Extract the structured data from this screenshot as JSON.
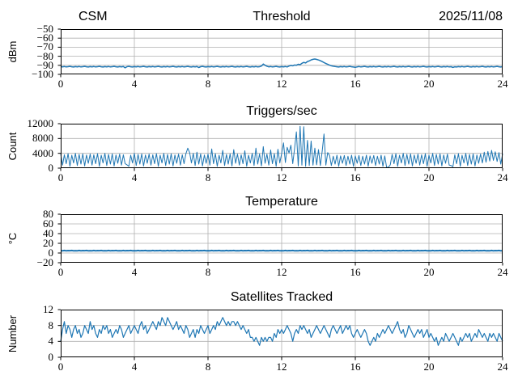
{
  "figure": {
    "header_left": "CSM",
    "header_right": "2025/11/08",
    "line_color": "#1f77b4",
    "grid_color": "#b0b0b0",
    "spine_color": "#000000",
    "background": "#ffffff"
  },
  "chart_data": [
    {
      "type": "line",
      "title": "Threshold",
      "ylabel": "dBm",
      "xlim": [
        0,
        24
      ],
      "ylim": [
        -100,
        -50
      ],
      "xtick_values": [
        0,
        4,
        8,
        12,
        16,
        20,
        24
      ],
      "xtick_labels": [
        "0",
        "4",
        "8",
        "12",
        "16",
        "20",
        "24"
      ],
      "ytick_values": [
        -50,
        -60,
        -70,
        -80,
        -90,
        -100
      ],
      "ytick_labels": [
        "−50",
        "−60",
        "−70",
        "−80",
        "−90",
        "−100"
      ],
      "grid": true,
      "x_start": 0,
      "x_step": 0.1,
      "values": [
        -91.4,
        -91.7,
        -91.3,
        -91.8,
        -91.5,
        -91.2,
        -91.6,
        -91.9,
        -91.4,
        -91.7,
        -91.3,
        -91.8,
        -91.5,
        -91.2,
        -91.6,
        -91.9,
        -91.4,
        -91.7,
        -91.3,
        -91.8,
        -91.5,
        -91.2,
        -91.6,
        -91.9,
        -91.4,
        -91.7,
        -91.3,
        -91.8,
        -91.5,
        -91.2,
        -91.6,
        -91.9,
        -91.4,
        -91.7,
        -91.3,
        -92.8,
        -91.5,
        -91.2,
        -91.6,
        -91.9,
        -91.4,
        -91.7,
        -91.3,
        -91.8,
        -91.5,
        -91.2,
        -91.6,
        -91.9,
        -91.4,
        -91.7,
        -91.3,
        -91.8,
        -91.5,
        -91.2,
        -91.6,
        -91.9,
        -91.4,
        -91.7,
        -91.3,
        -91.8,
        -91.5,
        -91.2,
        -91.6,
        -91.9,
        -91.4,
        -91.7,
        -91.3,
        -91.8,
        -91.5,
        -91.2,
        -91.6,
        -91.9,
        -91.4,
        -91.7,
        -91.3,
        -92.4,
        -91.5,
        -91.2,
        -91.6,
        -91.9,
        -91.4,
        -91.7,
        -91.3,
        -91.8,
        -91.5,
        -91.2,
        -91.6,
        -91.9,
        -91.4,
        -91.7,
        -91.3,
        -91.8,
        -91.5,
        -91.2,
        -91.6,
        -91.9,
        -91.4,
        -91.7,
        -91.3,
        -91.8,
        -91.5,
        -91.2,
        -91.6,
        -91.9,
        -91.4,
        -91.7,
        -91.3,
        -91.8,
        -91.5,
        -90.8,
        -88.6,
        -89.9,
        -91.0,
        -91.7,
        -91.3,
        -91.8,
        -91.5,
        -91.2,
        -91.6,
        -91.9,
        -91.4,
        -91.7,
        -91.3,
        -91.8,
        -90.8,
        -90.2,
        -90.5,
        -89.6,
        -89.9,
        -88.8,
        -89.3,
        -87.8,
        -86.8,
        -87.4,
        -85.8,
        -85.2,
        -84.0,
        -83.4,
        -83.0,
        -83.5,
        -84.1,
        -84.9,
        -85.9,
        -87.0,
        -88.0,
        -88.9,
        -89.8,
        -90.5,
        -91.0,
        -91.3,
        -91.6,
        -91.9,
        -91.4,
        -91.7,
        -91.3,
        -91.8,
        -91.5,
        -91.2,
        -91.6,
        -91.9,
        -92.2,
        -91.7,
        -91.3,
        -91.8,
        -91.5,
        -91.2,
        -91.6,
        -91.9,
        -91.4,
        -91.7,
        -91.3,
        -91.8,
        -91.5,
        -91.2,
        -91.6,
        -91.9,
        -91.4,
        -91.7,
        -91.3,
        -91.8,
        -91.5,
        -91.2,
        -91.6,
        -91.9,
        -91.4,
        -91.7,
        -91.3,
        -91.8,
        -91.5,
        -91.2,
        -91.6,
        -91.9,
        -91.4,
        -91.7,
        -91.3,
        -91.8,
        -91.5,
        -91.2,
        -91.6,
        -91.9,
        -91.4,
        -91.7,
        -91.3,
        -91.8,
        -91.5,
        -91.2,
        -91.6,
        -91.9,
        -91.4,
        -91.7,
        -91.3,
        -91.8,
        -91.5,
        -92.3,
        -91.6,
        -91.9,
        -91.4,
        -91.7,
        -91.3,
        -91.8,
        -91.5,
        -91.2,
        -91.6,
        -91.9,
        -91.4,
        -91.7,
        -91.3,
        -91.8,
        -91.5,
        -91.2,
        -91.6,
        -91.9,
        -91.4,
        -91.7,
        -91.3,
        -91.8,
        -91.5,
        -91.2,
        -91.6,
        -91.9,
        -91.4
      ]
    },
    {
      "type": "line",
      "title": "Triggers/sec",
      "ylabel": "Count",
      "xlim": [
        0,
        24
      ],
      "ylim": [
        0,
        12000
      ],
      "xtick_values": [
        0,
        4,
        8,
        12,
        16,
        20,
        24
      ],
      "xtick_labels": [
        "0",
        "4",
        "8",
        "12",
        "16",
        "20",
        "24"
      ],
      "ytick_values": [
        12000,
        8000,
        4000,
        0
      ],
      "ytick_labels": [
        "12000",
        "8000",
        "4000",
        "0"
      ],
      "grid": true,
      "x_start": 0,
      "x_step": 0.1,
      "values": [
        3800,
        800,
        3600,
        1200,
        3900,
        500,
        3500,
        1400,
        4000,
        700,
        3700,
        1100,
        3850,
        600,
        3550,
        1300,
        3800,
        800,
        3600,
        1200,
        3900,
        500,
        3500,
        1400,
        4000,
        700,
        3700,
        1100,
        3850,
        600,
        3550,
        1300,
        3800,
        800,
        3600,
        1200,
        900,
        500,
        3500,
        1400,
        4000,
        700,
        3700,
        1100,
        3850,
        600,
        3550,
        1300,
        3800,
        800,
        3600,
        1200,
        3900,
        500,
        3500,
        1400,
        4000,
        700,
        3700,
        1100,
        3850,
        600,
        3550,
        1300,
        3800,
        800,
        3600,
        1200,
        3900,
        5400,
        4200,
        1400,
        4000,
        700,
        4300,
        1100,
        3850,
        600,
        3550,
        1300,
        3800,
        800,
        5200,
        1200,
        3900,
        500,
        3500,
        1400,
        4800,
        700,
        3700,
        1100,
        3850,
        600,
        5000,
        1300,
        3800,
        800,
        3600,
        1200,
        4700,
        500,
        3500,
        1400,
        4000,
        700,
        5400,
        1100,
        3850,
        600,
        5800,
        1300,
        3800,
        800,
        4900,
        1200,
        3900,
        500,
        5100,
        1400,
        4000,
        6800,
        1500,
        5600,
        4100,
        6200,
        1200,
        5200,
        9800,
        600,
        11300,
        800,
        11200,
        500,
        7500,
        700,
        7300,
        800,
        5400,
        900,
        5000,
        700,
        4600,
        9200,
        800,
        4200,
        3400,
        700,
        3200,
        1100,
        3500,
        500,
        3300,
        1300,
        3400,
        700,
        3200,
        1100,
        3500,
        500,
        3300,
        1300,
        3400,
        700,
        3200,
        1100,
        3500,
        500,
        3300,
        1300,
        3400,
        700,
        3200,
        1100,
        3500,
        500,
        3300,
        150,
        260,
        900,
        3700,
        1200,
        3900,
        500,
        3500,
        1400,
        4000,
        700,
        3700,
        1100,
        3850,
        600,
        3550,
        1300,
        3800,
        800,
        3600,
        1200,
        3900,
        500,
        3500,
        1400,
        4000,
        700,
        3700,
        1100,
        3850,
        600,
        3550,
        1300,
        3800,
        800,
        700,
        400,
        3600,
        1200,
        3900,
        500,
        3500,
        1400,
        4000,
        700,
        3700,
        1100,
        3850,
        600,
        3550,
        1300,
        3800,
        1400,
        4300,
        1600,
        4500,
        1900,
        4800,
        2100,
        4400,
        1800,
        4200,
        1100,
        3900
      ]
    },
    {
      "type": "line",
      "title": "Temperature",
      "ylabel": "°C",
      "xlim": [
        0,
        24
      ],
      "ylim": [
        -20,
        80
      ],
      "xtick_values": [
        0,
        4,
        8,
        12,
        16,
        20,
        24
      ],
      "xtick_labels": [
        "0",
        "4",
        "8",
        "12",
        "16",
        "20",
        "24"
      ],
      "ytick_values": [
        80,
        60,
        40,
        20,
        0,
        -20
      ],
      "ytick_labels": [
        "80",
        "60",
        "40",
        "20",
        "0",
        "−20"
      ],
      "grid": true,
      "x_start": 0,
      "x_step": 0.1,
      "values": [
        4.9,
        4.6,
        5.1,
        4.7,
        5.0,
        4.8,
        5.2,
        4.6,
        4.9,
        4.6,
        5.1,
        4.7,
        5.0,
        4.8,
        5.2,
        4.6,
        4.9,
        4.6,
        5.1,
        4.7,
        5.0,
        4.8,
        5.2,
        4.6,
        4.9,
        4.6,
        5.1,
        4.7,
        5.0,
        4.8,
        5.2,
        4.6,
        4.9,
        4.6,
        5.1,
        4.7,
        5.0,
        4.8,
        5.2,
        4.6,
        4.9,
        4.6,
        5.1,
        4.7,
        5.0,
        4.8,
        5.2,
        4.6,
        4.9,
        4.6,
        5.1,
        4.7,
        5.0,
        4.8,
        5.2,
        4.6,
        4.9,
        4.6,
        5.1,
        4.7,
        5.0,
        4.8,
        5.2,
        4.6,
        4.9,
        4.6,
        5.1,
        4.7,
        5.0,
        4.8,
        5.2,
        4.6,
        4.9,
        4.6,
        5.1,
        4.7,
        5.0,
        4.8,
        5.2,
        4.6,
        4.9,
        4.6,
        5.1,
        4.7,
        5.0,
        4.8,
        5.2,
        4.6,
        4.9,
        4.6,
        5.1,
        4.7,
        5.0,
        4.8,
        5.2,
        4.6,
        4.9,
        4.6,
        5.1,
        4.7,
        5.0,
        4.8,
        5.2,
        4.6,
        4.9,
        4.6,
        5.1,
        4.7,
        5.0,
        4.8,
        5.2,
        4.6,
        4.9,
        4.6,
        5.1,
        4.7,
        5.0,
        4.8,
        5.2,
        4.6,
        4.9,
        4.6,
        5.1,
        4.7,
        5.0,
        4.8,
        5.2,
        4.6,
        4.9,
        4.6,
        5.1,
        4.7,
        5.0,
        4.8,
        5.2,
        4.6,
        4.9,
        4.6,
        5.1,
        4.7,
        5.0,
        4.8,
        5.2,
        4.6,
        4.9,
        4.6,
        5.1,
        4.7,
        5.0,
        4.8,
        5.2,
        4.6,
        4.9,
        4.6,
        5.1,
        4.7,
        5.0,
        4.8,
        5.2,
        4.6,
        4.9,
        4.6,
        5.1,
        4.7,
        5.0,
        4.8,
        5.2,
        4.6,
        4.9,
        4.6,
        5.1,
        4.7,
        5.0,
        4.8,
        5.2,
        4.6,
        4.9,
        4.6,
        5.1,
        4.7,
        5.0,
        4.8,
        5.2,
        4.6,
        4.9,
        4.6,
        5.1,
        4.7,
        5.0,
        4.8,
        5.2,
        4.6,
        4.9,
        4.6,
        5.1,
        4.7,
        5.0,
        4.8,
        5.2,
        4.6,
        4.9,
        4.6,
        5.1,
        4.7,
        5.0,
        4.8,
        5.2,
        4.6,
        4.9,
        4.6,
        5.1,
        4.7,
        5.0,
        4.8,
        5.2,
        4.6,
        4.9,
        4.6,
        5.1,
        4.7,
        5.0,
        4.8,
        5.2,
        4.6,
        4.9,
        4.6,
        5.1,
        4.7,
        5.0,
        4.8,
        5.2,
        4.6,
        4.9,
        4.6,
        5.1,
        4.7,
        5.0,
        4.8,
        5.2,
        4.6,
        4.9
      ]
    },
    {
      "type": "line",
      "title": "Satellites Tracked",
      "ylabel": "Number",
      "xlim": [
        0,
        24
      ],
      "ylim": [
        0,
        12
      ],
      "xtick_values": [
        0,
        4,
        8,
        12,
        16,
        20,
        24
      ],
      "xtick_labels": [
        "0",
        "4",
        "8",
        "12",
        "16",
        "20",
        "24"
      ],
      "ytick_values": [
        12,
        8,
        4,
        0
      ],
      "ytick_labels": [
        "12",
        "8",
        "4",
        "0"
      ],
      "grid": true,
      "x_start": 0,
      "x_step": 0.1,
      "values": [
        4,
        7,
        9,
        6,
        8,
        7,
        5,
        7,
        8,
        6,
        7,
        5,
        6,
        8,
        7,
        6,
        9,
        7,
        8,
        6,
        5,
        7,
        6,
        8,
        7,
        8,
        6,
        7,
        5,
        6,
        7,
        6,
        8,
        7,
        5,
        6,
        7,
        8,
        6,
        7,
        8,
        7,
        6,
        8,
        9,
        7,
        8,
        6,
        7,
        8,
        9,
        8,
        7,
        9,
        8,
        10,
        9,
        8,
        10,
        9,
        8,
        7,
        8,
        9,
        7,
        8,
        7,
        6,
        8,
        7,
        5,
        6,
        7,
        5,
        7,
        6,
        8,
        7,
        6,
        7,
        8,
        6,
        7,
        8,
        7,
        9,
        8,
        9,
        10,
        9,
        8,
        9,
        8,
        9,
        9,
        8,
        9,
        8,
        7,
        8,
        7,
        6,
        7,
        5,
        5,
        4,
        5,
        4,
        3,
        5,
        4,
        5,
        4,
        5,
        5,
        4,
        6,
        5,
        7,
        6,
        7,
        6,
        7,
        8,
        7,
        6,
        4,
        6,
        7,
        6,
        8,
        7,
        8,
        7,
        6,
        7,
        5,
        6,
        7,
        8,
        7,
        6,
        7,
        8,
        7,
        6,
        5,
        7,
        8,
        7,
        6,
        7,
        8,
        6,
        7,
        8,
        7,
        8,
        6,
        5,
        6,
        7,
        6,
        5,
        6,
        7,
        6,
        4,
        3,
        4,
        5,
        4,
        6,
        5,
        6,
        7,
        6,
        7,
        8,
        7,
        6,
        7,
        8,
        9,
        7,
        6,
        7,
        5,
        6,
        8,
        7,
        6,
        5,
        6,
        7,
        6,
        7,
        5,
        6,
        7,
        5,
        6,
        5,
        4,
        5,
        3,
        4,
        5,
        4,
        6,
        5,
        4,
        5,
        6,
        5,
        4,
        3,
        5,
        4,
        5,
        6,
        5,
        6,
        4,
        5,
        6,
        5,
        7,
        6,
        5,
        6,
        5,
        4,
        6,
        5,
        6,
        5,
        4,
        6,
        5,
        4
      ]
    }
  ]
}
